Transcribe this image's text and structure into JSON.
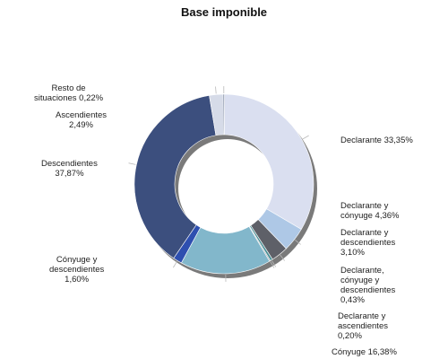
{
  "chart_data": {
    "type": "pie",
    "title": "Base imponible",
    "donut": true,
    "slices": [
      {
        "name": "Declarante",
        "label": "Declarante 33,35%",
        "value": 33.35,
        "color": "#dadff0"
      },
      {
        "name": "Declarante y cónyuge",
        "label": "Declarante y\ncónyuge 4,36%",
        "value": 4.36,
        "color": "#aec8e6"
      },
      {
        "name": "Declarante y descendientes",
        "label": "Declarante y\ndescendientes\n3,10%",
        "value": 3.1,
        "color": "#5e6068"
      },
      {
        "name": "Declarante, cónyuge y descendientes",
        "label": "Declarante,\ncónyuge y\ndescendientes\n0,43%",
        "value": 0.43,
        "color": "#4a8f96"
      },
      {
        "name": "Declarante y ascendientes",
        "label": "Declarante y\nascendientes\n0,20%",
        "value": 0.2,
        "color": "#9aa0a8"
      },
      {
        "name": "Cónyuge",
        "label": "Cónyuge 16,38%",
        "value": 16.38,
        "color": "#82b7cb"
      },
      {
        "name": "Cónyuge y descendientes",
        "label": "Cónyuge y\ndescendientes\n1,60%",
        "value": 1.6,
        "color": "#2e4fb0"
      },
      {
        "name": "Descendientes",
        "label": "Descendientes\n37,87%",
        "value": 37.87,
        "color": "#3c4f7e"
      },
      {
        "name": "Ascendientes",
        "label": "Ascendientes\n2,49%",
        "value": 2.49,
        "color": "#d6dbe8"
      },
      {
        "name": "Resto de situaciones",
        "label": "Resto de\nsituaciones 0,22%",
        "value": 0.22,
        "color": "#5a6a8a"
      }
    ]
  }
}
